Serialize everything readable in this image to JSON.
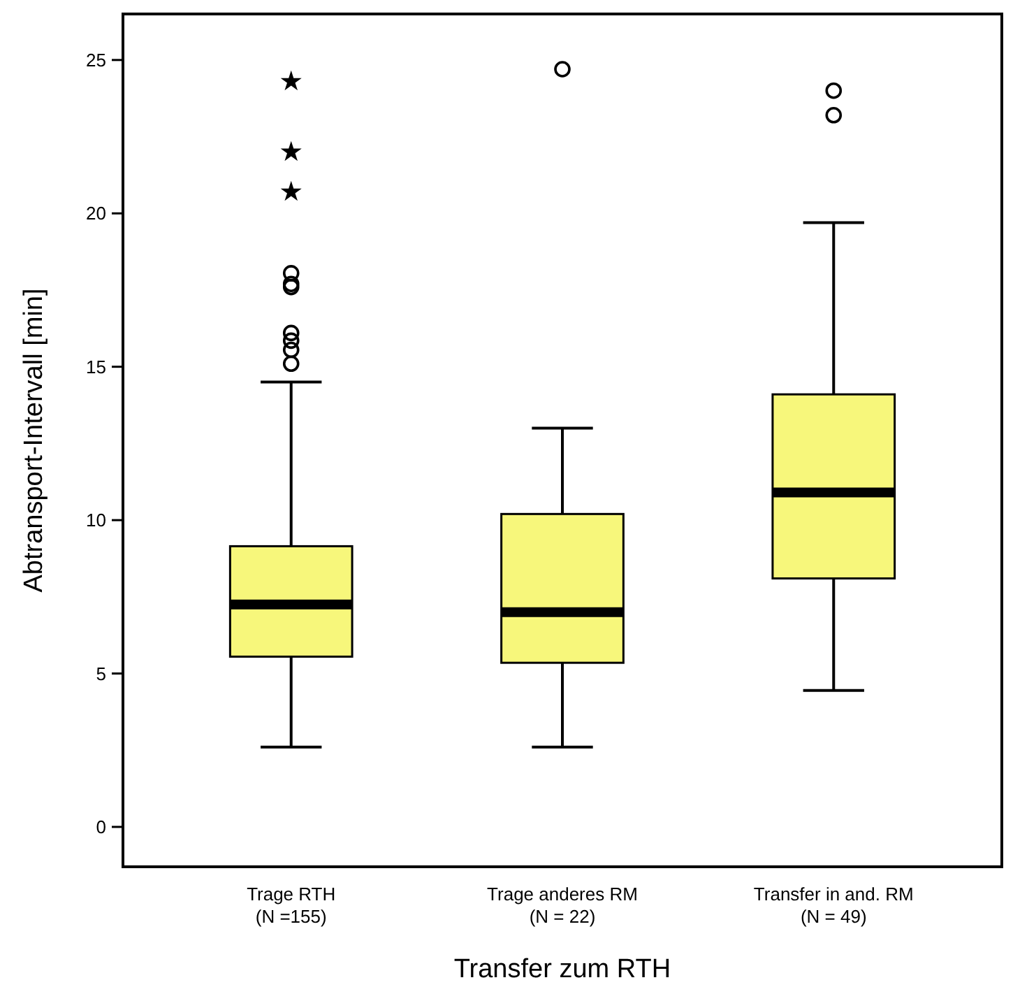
{
  "chart_data": {
    "type": "box",
    "xlabel": "Transfer zum RTH",
    "ylabel": "Abtransport-Intervall [min]",
    "categories": [
      "Trage RTH\n(N =155)",
      "Trage anderes RM\n(N = 22)",
      "Transfer in and. RM\n(N = 49)"
    ],
    "ylim": [
      -1.3,
      26.5
    ],
    "yticks": [
      0,
      5,
      10,
      15,
      20,
      25
    ],
    "grid": false,
    "series": [
      {
        "type": "box",
        "color": "#f7f77b",
        "boxes": [
          {
            "low": 2.6,
            "q1": 5.55,
            "median": 7.25,
            "q3": 9.15,
            "high": 14.5,
            "outliers": [
              15.1,
              15.55,
              15.85,
              16.1,
              17.6,
              17.7,
              18.05
            ]
          },
          {
            "low": 2.6,
            "q1": 5.35,
            "median": 7.0,
            "q3": 10.2,
            "high": 13.0,
            "outliers": [
              24.7
            ]
          },
          {
            "low": 4.45,
            "q1": 8.1,
            "median": 10.9,
            "q3": 14.1,
            "high": 19.7,
            "outliers": [
              23.2,
              24.0
            ]
          }
        ]
      },
      {
        "type": "scatter",
        "marker": "star",
        "color": "#000000",
        "x": [
          "Trage RTH\n(N =155)",
          "Trage RTH\n(N =155)",
          "Trage RTH\n(N =155)"
        ],
        "values": [
          20.7,
          22.0,
          24.3
        ]
      }
    ]
  }
}
